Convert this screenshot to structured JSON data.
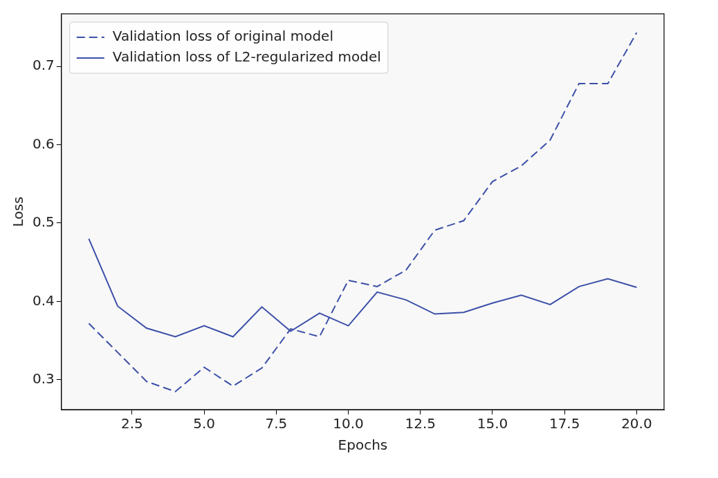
{
  "chart_data": {
    "type": "line",
    "x_label": "Epochs",
    "y_label": "Loss",
    "x": [
      1,
      2,
      3,
      4,
      5,
      6,
      7,
      8,
      9,
      10,
      11,
      12,
      13,
      14,
      15,
      16,
      17,
      18,
      19,
      20
    ],
    "series": [
      {
        "name": "Validation loss of original model",
        "color": "#3b4fa8",
        "line_style": "dashed",
        "marker": "none",
        "values": [
          0.372,
          0.335,
          0.298,
          0.285,
          0.316,
          0.292,
          0.315,
          0.365,
          0.355,
          0.427,
          0.419,
          0.44,
          0.491,
          0.503,
          0.553,
          0.573,
          0.606,
          0.678,
          0.678,
          0.743
        ]
      },
      {
        "name": "Validation loss of L2-regularized model",
        "color": "#3b4fa8",
        "line_style": "solid",
        "marker": "none",
        "values": [
          0.48,
          0.394,
          0.366,
          0.355,
          0.369,
          0.355,
          0.393,
          0.362,
          0.385,
          0.369,
          0.412,
          0.402,
          0.384,
          0.386,
          0.398,
          0.408,
          0.396,
          0.419,
          0.429,
          0.418
        ]
      }
    ],
    "xlim": [
      0.05,
      20.95
    ],
    "xticks": [
      2.5,
      {
        "value": 5,
        "label": "5.0"
      },
      7.5,
      {
        "value": 10,
        "label": "10.0"
      },
      12.5,
      {
        "value": 15,
        "label": "15.0"
      },
      17.5,
      {
        "value": 20,
        "label": "20.0"
      }
    ],
    "ylim": [
      0.262,
      0.767
    ],
    "yticks": [
      0.3,
      0.4,
      0.5,
      0.6,
      0.7
    ],
    "grid": false,
    "legend": "upper left"
  }
}
